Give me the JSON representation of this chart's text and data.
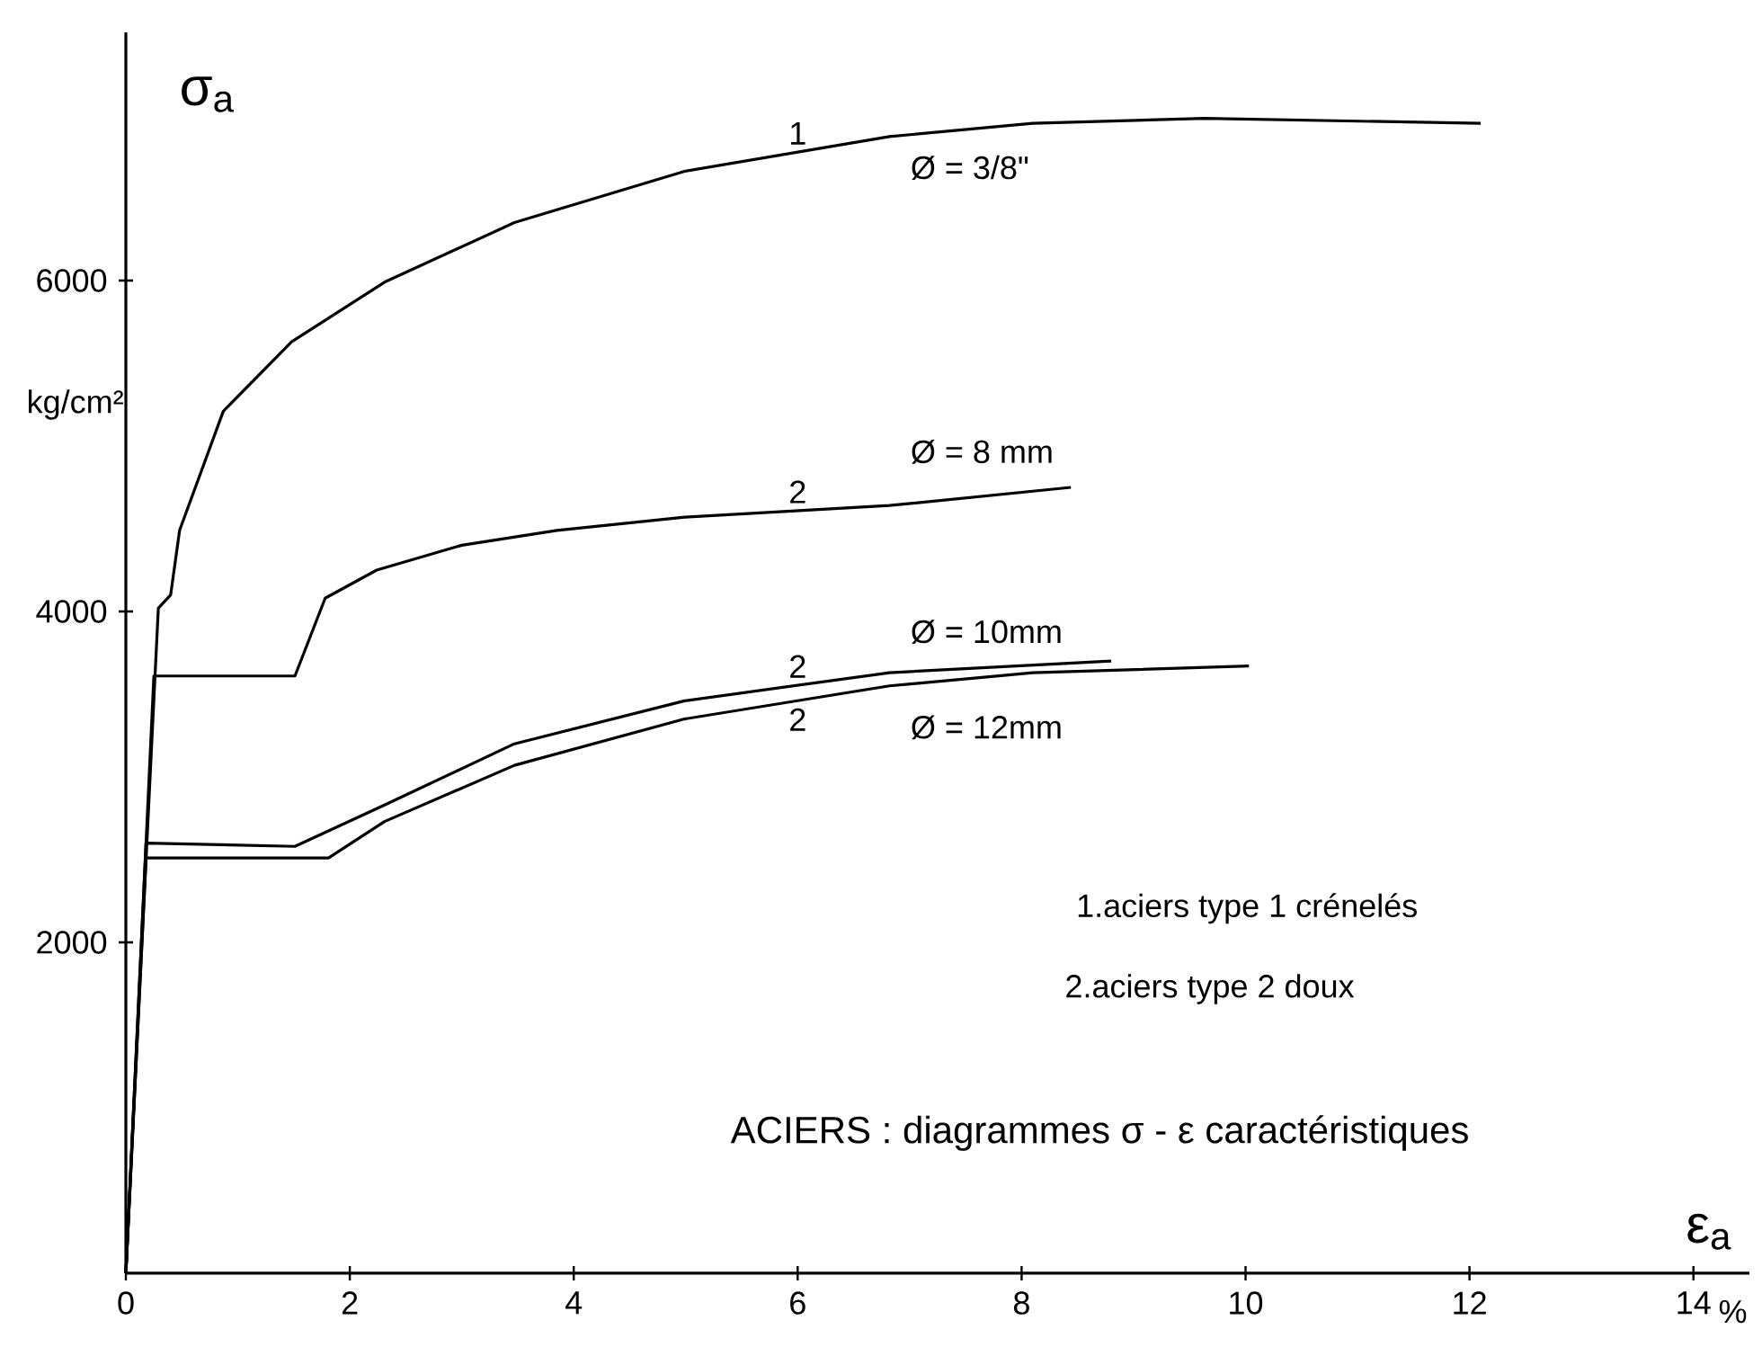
{
  "chart_data": {
    "type": "line",
    "title": "ACIERS : diagrammes σ - ε caractéristiques",
    "xlabel": "ε$_{a}$",
    "ylabel": "σ$_{a}$",
    "xlim": [
      0,
      14.5
    ],
    "ylim": [
      0,
      7500
    ],
    "xticks": [
      0,
      2,
      4,
      6,
      8,
      10,
      12,
      14
    ],
    "yticks": [
      2000,
      4000,
      6000
    ],
    "grid": false,
    "legend": false,
    "line_style": "solid",
    "series": [
      {
        "name": "1",
        "color": "#000000",
        "x": [
          0,
          0.29,
          0.4,
          0.48,
          0.87,
          1.48,
          2.31,
          3.47,
          4.99,
          6.82,
          8.1,
          9.63,
          12.1
        ],
        "values": [
          0,
          4020,
          4100,
          4490,
          5210,
          5630,
          5990,
          6350,
          6660,
          6870,
          6950,
          6980,
          6950
        ]
      },
      {
        "name": "2",
        "color": "#000000",
        "x": [
          0,
          0.25,
          1.51,
          1.78,
          2.24,
          3.0,
          3.85,
          4.99,
          6.82,
          8.44
        ],
        "values": [
          0,
          3610,
          3610,
          4080,
          4250,
          4400,
          4490,
          4570,
          4640,
          4750
        ]
      },
      {
        "name": "2",
        "color": "#000000",
        "x": [
          0,
          0.18,
          1.51,
          2.31,
          3.47,
          4.99,
          6.82,
          8.8
        ],
        "values": [
          0,
          2600,
          2580,
          2830,
          3200,
          3460,
          3630,
          3700
        ]
      },
      {
        "name": "2",
        "color": "#000000",
        "x": [
          0,
          0.18,
          1.81,
          2.31,
          3.47,
          4.99,
          6.82,
          8.1,
          10.03
        ],
        "values": [
          0,
          2510,
          2510,
          2730,
          3070,
          3350,
          3550,
          3630,
          3670
        ]
      }
    ],
    "annotations": [
      "kg/cm²",
      "Ø = 3/8\"",
      "Ø = 8 mm",
      "Ø = 10mm",
      "Ø = 12mm",
      "1.aciers type 1 crénelés",
      "2.aciers type 2 doux",
      "%"
    ]
  }
}
